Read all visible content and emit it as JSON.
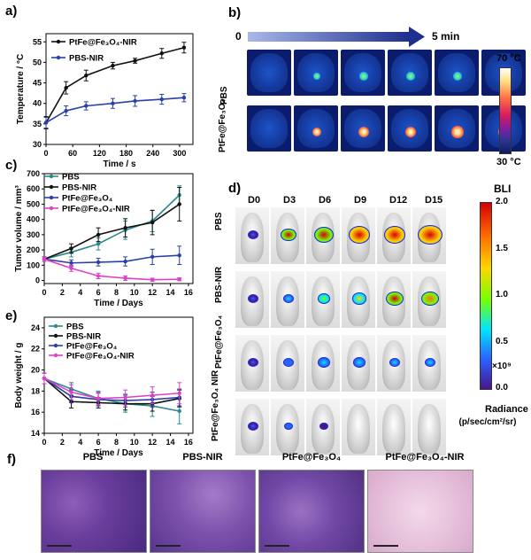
{
  "panels": {
    "a": "a)",
    "b": "b)",
    "c": "c)",
    "d": "d)",
    "e": "e)",
    "f": "f)"
  },
  "chart_data": [
    {
      "id": "a",
      "type": "line",
      "xlabel": "Time / s",
      "ylabel": "Temperature / °C",
      "x": [
        0,
        60,
        120,
        180,
        240,
        300
      ],
      "xticks": [
        "0",
        "60",
        "120",
        "180",
        "240",
        "300"
      ],
      "yticks": [
        "30",
        "35",
        "40",
        "45",
        "50",
        "55"
      ],
      "xlim": [
        0,
        330
      ],
      "ylim": [
        30,
        57
      ],
      "series": [
        {
          "name": "PtFe@Fe3O4-NIR",
          "legend": "PtFe@Fe₃O₄-NIR",
          "color": "#111111",
          "x": [
            0,
            45,
            90,
            150,
            200,
            260,
            310
          ],
          "values": [
            35.3,
            43.8,
            46.8,
            49.2,
            50.4,
            52.2,
            53.6
          ],
          "err": [
            1.5,
            1.5,
            1.3,
            0.8,
            0.6,
            1.2,
            1.3
          ]
        },
        {
          "name": "PBS-NIR",
          "legend": "PBS-NIR",
          "color": "#2b3fa8",
          "x": [
            0,
            45,
            90,
            150,
            200,
            260,
            310
          ],
          "values": [
            35.3,
            38.2,
            39.4,
            40.0,
            40.6,
            41.0,
            41.4
          ],
          "err": [
            1.3,
            1.2,
            1.0,
            1.2,
            1.3,
            1.2,
            1.0
          ]
        }
      ]
    },
    {
      "id": "c",
      "type": "line",
      "xlabel": "Time / Days",
      "ylabel": "Tumor volume / mm³",
      "x": [
        0,
        3,
        6,
        9,
        12,
        15
      ],
      "xticks": [
        "0",
        "2",
        "4",
        "6",
        "8",
        "10",
        "12",
        "14",
        "16"
      ],
      "xtickvals": [
        0,
        2,
        4,
        6,
        8,
        10,
        12,
        14,
        16
      ],
      "yticks": [
        "0",
        "100",
        "200",
        "300",
        "400",
        "500",
        "600",
        "700"
      ],
      "xlim": [
        0,
        16.5
      ],
      "ylim": [
        -20,
        700
      ],
      "series": [
        {
          "name": "PBS",
          "legend": "PBS",
          "color": "#2a8a8a",
          "values": [
            140,
            185,
            240,
            330,
            390,
            560
          ],
          "err": [
            15,
            30,
            40,
            60,
            70,
            60
          ]
        },
        {
          "name": "PBS-NIR",
          "legend": "PBS-NIR",
          "color": "#111111",
          "values": [
            140,
            210,
            300,
            345,
            380,
            500
          ],
          "err": [
            15,
            30,
            45,
            60,
            80,
            110
          ]
        },
        {
          "name": "PtFe@Fe3O4",
          "legend": "PtFe@Fe₃O₄",
          "color": "#2b3fa8",
          "values": [
            140,
            115,
            120,
            125,
            155,
            165
          ],
          "err": [
            15,
            20,
            25,
            30,
            50,
            60
          ]
        },
        {
          "name": "PtFe@Fe3O4-NIR",
          "legend": "PtFe@Fe₃O₄-NIR",
          "color": "#e040c8",
          "values": [
            140,
            80,
            30,
            15,
            5,
            8
          ],
          "err": [
            15,
            20,
            18,
            15,
            10,
            10
          ]
        }
      ]
    },
    {
      "id": "e",
      "type": "line",
      "xlabel": "Time / Days",
      "ylabel": "Body weight / g",
      "x": [
        0,
        3,
        6,
        9,
        12,
        15
      ],
      "xticks": [
        "0",
        "2",
        "4",
        "6",
        "8",
        "10",
        "12",
        "14",
        "16"
      ],
      "xtickvals": [
        0,
        2,
        4,
        6,
        8,
        10,
        12,
        14,
        16
      ],
      "yticks": [
        "14",
        "16",
        "18",
        "20",
        "22",
        "24"
      ],
      "xlim": [
        0,
        16.5
      ],
      "ylim": [
        14,
        25
      ],
      "series": [
        {
          "name": "PBS",
          "legend": "PBS",
          "color": "#2a8a8a",
          "values": [
            19.2,
            18.2,
            17.3,
            16.8,
            16.6,
            16.1
          ],
          "err": [
            0.5,
            0.6,
            0.7,
            0.8,
            1.0,
            1.2
          ]
        },
        {
          "name": "PBS-NIR",
          "legend": "PBS-NIR",
          "color": "#111111",
          "values": [
            19.2,
            17.0,
            16.9,
            16.8,
            16.8,
            17.3
          ],
          "err": [
            0.5,
            0.6,
            0.5,
            0.6,
            0.7,
            0.8
          ]
        },
        {
          "name": "PtFe@Fe3O4",
          "legend": "PtFe@Fe₃O₄",
          "color": "#2b3fa8",
          "values": [
            19.2,
            17.5,
            17.2,
            17.1,
            17.2,
            17.4
          ],
          "err": [
            0.5,
            0.6,
            0.6,
            0.6,
            0.7,
            0.8
          ]
        },
        {
          "name": "PtFe@Fe3O4-NIR",
          "legend": "PtFe@Fe₃O₄-NIR",
          "color": "#e040c8",
          "values": [
            19.2,
            17.9,
            17.3,
            17.4,
            17.6,
            17.8
          ],
          "err": [
            0.5,
            0.7,
            0.6,
            0.7,
            0.8,
            1.0
          ]
        }
      ]
    }
  ],
  "thermal": {
    "start_label": "0",
    "end_label": "5 min",
    "rows": [
      "PBS",
      "PtFe@Fe₃O₄"
    ],
    "scale_max": "70 °C",
    "scale_min": "30 °C",
    "colors": [
      "#ffffff",
      "#ffe082",
      "#ff7043",
      "#d81b60",
      "#7b1fa2",
      "#283593",
      "#0d1b5e"
    ]
  },
  "bioluminescence": {
    "days": [
      "D0",
      "D3",
      "D6",
      "D9",
      "D12",
      "D15"
    ],
    "rows": [
      "PBS",
      "PBS-NIR",
      "PtFe@Fe₃O₄",
      "PtFe@Fe₃O₄ NIR"
    ],
    "legend_title": "BLI",
    "ticks": [
      "2.0",
      "1.5",
      "1.0",
      "0.5",
      "0.0"
    ],
    "multiplier": "×10⁹",
    "unit_line1": "Radiance",
    "unit_line2": "(p/sec/cm²/sr)",
    "colors": [
      "#d50000",
      "#ff6d00",
      "#ffd600",
      "#76ff03",
      "#00e5ff",
      "#2962ff",
      "#4a148c"
    ]
  },
  "histology": {
    "labels": [
      "PBS",
      "PBS-NIR",
      "PtFe@Fe₃O₄",
      "PtFe@Fe₃O₄-NIR"
    ]
  }
}
